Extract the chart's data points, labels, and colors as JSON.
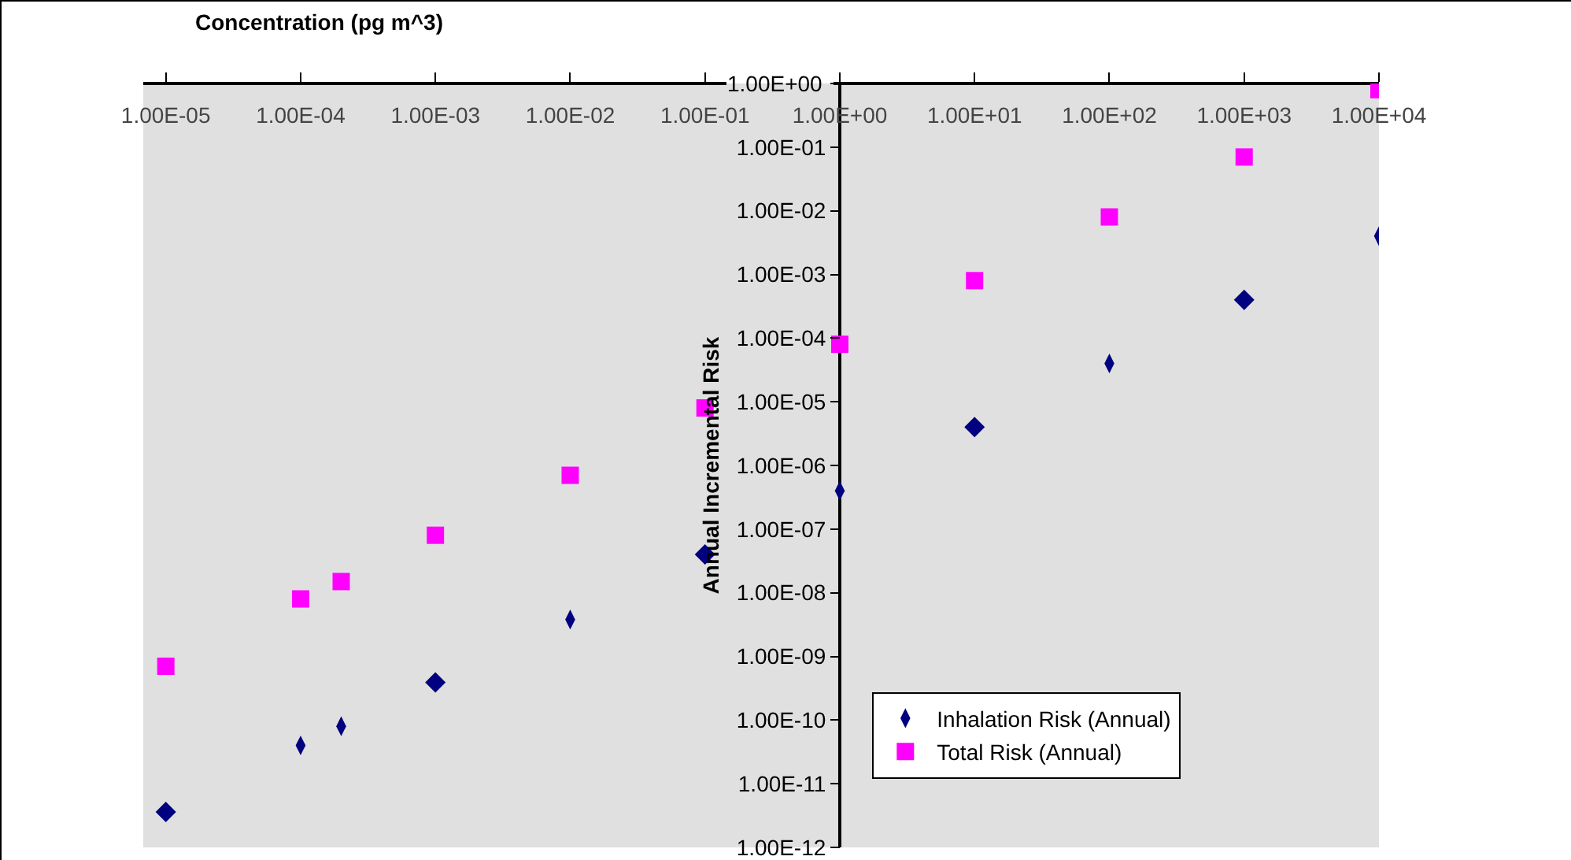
{
  "chart_data": {
    "type": "scatter",
    "xlabel": "Concentration (pg m^3)",
    "ylabel": "Annual Incremental Risk",
    "log": "xy",
    "legend": "bottom right",
    "xlim": [
      6.8e-06,
      10000
    ],
    "xticks": [
      {
        "value": 1e-05,
        "label": "1.00E-05"
      },
      {
        "value": 0.0001,
        "label": "1.00E-04"
      },
      {
        "value": 0.001,
        "label": "1.00E-03"
      },
      {
        "value": 0.01,
        "label": "1.00E-02"
      },
      {
        "value": 0.1,
        "label": "1.00E-01"
      },
      {
        "value": 1,
        "label": "1.00E+00"
      },
      {
        "value": 10,
        "label": "1.00E+01"
      },
      {
        "value": 100,
        "label": "1.00E+02"
      },
      {
        "value": 1000,
        "label": "1.00E+03"
      },
      {
        "value": 10000,
        "label": "1.00E+04"
      }
    ],
    "ylim": [
      1e-12,
      1
    ],
    "yticks": [
      {
        "value": 1,
        "label": "1.00E+00"
      },
      {
        "value": 0.1,
        "label": "1.00E-01"
      },
      {
        "value": 0.01,
        "label": "1.00E-02"
      },
      {
        "value": 0.001,
        "label": "1.00E-03"
      },
      {
        "value": 0.0001,
        "label": "1.00E-04"
      },
      {
        "value": 1e-05,
        "label": "1.00E-05"
      },
      {
        "value": 1e-06,
        "label": "1.00E-06"
      },
      {
        "value": 1e-07,
        "label": "1.00E-07"
      },
      {
        "value": 1e-08,
        "label": "1.00E-08"
      },
      {
        "value": 1e-09,
        "label": "1.00E-09"
      },
      {
        "value": 1e-10,
        "label": "1.00E-10"
      },
      {
        "value": 1e-11,
        "label": "1.00E-11"
      },
      {
        "value": 1e-12,
        "label": "1.00E-12"
      }
    ],
    "series": [
      {
        "color": "#000080",
        "marker": "diamond",
        "x": [
          1e-05,
          0.001,
          0.1,
          10,
          1000
        ],
        "values": [
          3.6e-12,
          3.9e-10,
          4e-08,
          4e-06,
          0.0004
        ]
      },
      {
        "name": "Inhalation Risk (Annual)",
        "color": "#000080",
        "x": [
          0.0001,
          0.0002,
          0.01,
          1,
          100,
          10000
        ],
        "values": [
          4e-11,
          8e-11,
          3.8e-09,
          4e-07,
          4e-05,
          0.004
        ]
      },
      {
        "name": "Total Risk (Annual)",
        "color": "#ff00ff",
        "marker": "square",
        "x": [
          1e-05,
          0.0001,
          0.0002,
          0.001,
          0.01,
          0.1,
          1,
          10,
          100,
          1000,
          10000
        ],
        "values": [
          7e-10,
          8e-09,
          1.5e-08,
          8e-08,
          7e-07,
          8e-06,
          8e-05,
          0.0008,
          0.008,
          0.07,
          0.8
        ]
      }
    ]
  }
}
